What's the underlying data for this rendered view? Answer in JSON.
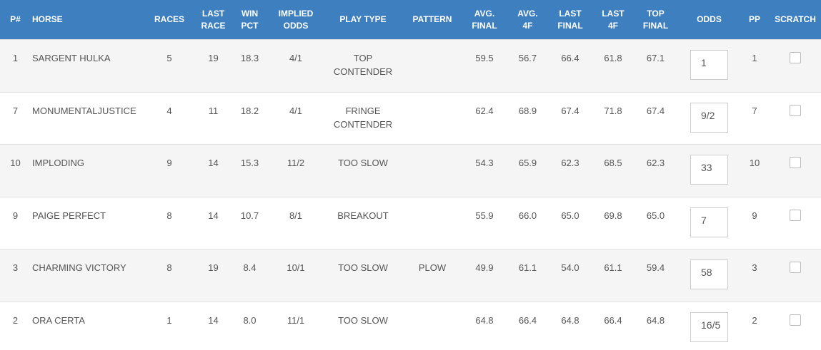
{
  "columns": {
    "num": "P#",
    "horse": "HORSE",
    "races": "RACES",
    "last_race": "LAST\nRACE",
    "win_pct": "WIN\nPCT",
    "implied_odds": "IMPLIED\nODDS",
    "play_type": "PLAY TYPE",
    "pattern": "PATTERN",
    "avg_final": "AVG.\nFINAL",
    "avg_4f": "AVG.\n4F",
    "last_final": "LAST\nFINAL",
    "last_4f": "LAST\n4F",
    "top_final": "TOP\nFINAL",
    "odds": "ODDS",
    "pp": "PP",
    "scratch": "SCRATCH"
  },
  "rows": [
    {
      "num": "1",
      "horse": "SARGENT HULKA",
      "races": "5",
      "last_race": "19",
      "win_pct": "18.3",
      "implied_odds": "4/1",
      "play_type": "TOP\nCONTENDER",
      "pattern": "",
      "avg_final": "59.5",
      "avg_4f": "56.7",
      "last_final": "66.4",
      "last_4f": "61.8",
      "top_final": "67.1",
      "odds": "1",
      "pp": "1",
      "scratched": false
    },
    {
      "num": "7",
      "horse": "MONUMENTALJUSTICE",
      "races": "4",
      "last_race": "11",
      "win_pct": "18.2",
      "implied_odds": "4/1",
      "play_type": "FRINGE\nCONTENDER",
      "pattern": "",
      "avg_final": "62.4",
      "avg_4f": "68.9",
      "last_final": "67.4",
      "last_4f": "71.8",
      "top_final": "67.4",
      "odds": "9/2",
      "pp": "7",
      "scratched": false
    },
    {
      "num": "10",
      "horse": "IMPLODING",
      "races": "9",
      "last_race": "14",
      "win_pct": "15.3",
      "implied_odds": "11/2",
      "play_type": "TOO SLOW",
      "pattern": "",
      "avg_final": "54.3",
      "avg_4f": "65.9",
      "last_final": "62.3",
      "last_4f": "68.5",
      "top_final": "62.3",
      "odds": "33",
      "pp": "10",
      "scratched": false
    },
    {
      "num": "9",
      "horse": "PAIGE PERFECT",
      "races": "8",
      "last_race": "14",
      "win_pct": "10.7",
      "implied_odds": "8/1",
      "play_type": "BREAKOUT",
      "pattern": "",
      "avg_final": "55.9",
      "avg_4f": "66.0",
      "last_final": "65.0",
      "last_4f": "69.8",
      "top_final": "65.0",
      "odds": "7",
      "pp": "9",
      "scratched": false
    },
    {
      "num": "3",
      "horse": "CHARMING VICTORY",
      "races": "8",
      "last_race": "19",
      "win_pct": "8.4",
      "implied_odds": "10/1",
      "play_type": "TOO SLOW",
      "pattern": "PLOW",
      "avg_final": "49.9",
      "avg_4f": "61.1",
      "last_final": "54.0",
      "last_4f": "61.1",
      "top_final": "59.4",
      "odds": "58",
      "pp": "3",
      "scratched": false
    },
    {
      "num": "2",
      "horse": "ORA CERTA",
      "races": "1",
      "last_race": "14",
      "win_pct": "8.0",
      "implied_odds": "11/1",
      "play_type": "TOO SLOW",
      "pattern": "",
      "avg_final": "64.8",
      "avg_4f": "66.4",
      "last_final": "64.8",
      "last_4f": "66.4",
      "top_final": "64.8",
      "odds": "16/5",
      "pp": "2",
      "scratched": false
    }
  ]
}
